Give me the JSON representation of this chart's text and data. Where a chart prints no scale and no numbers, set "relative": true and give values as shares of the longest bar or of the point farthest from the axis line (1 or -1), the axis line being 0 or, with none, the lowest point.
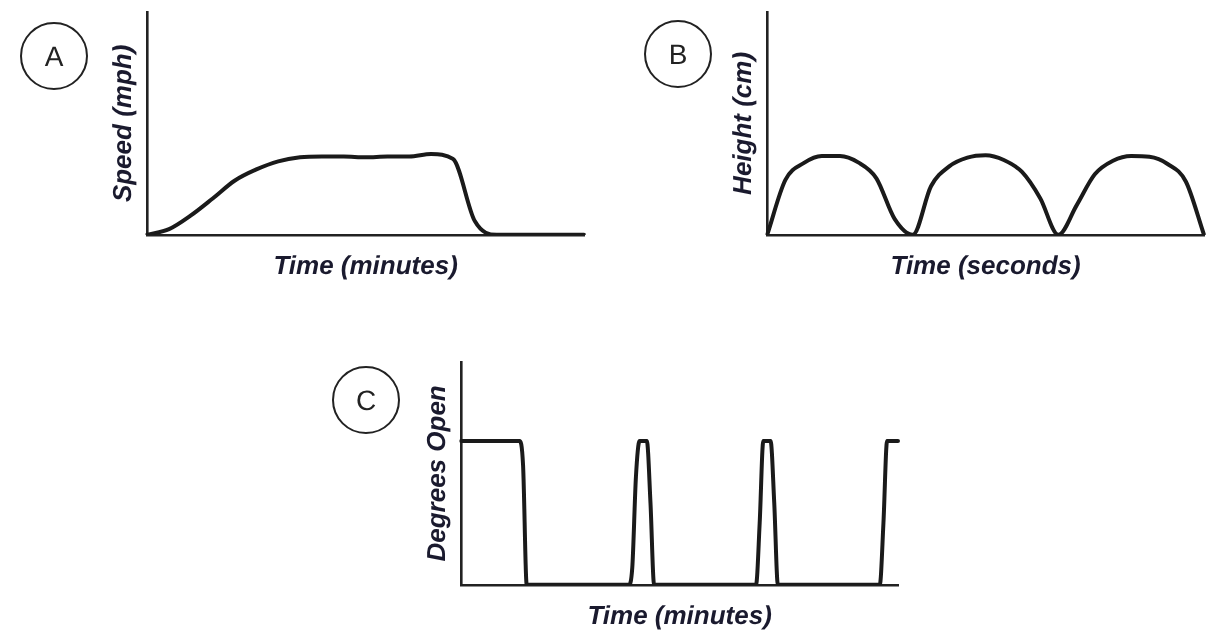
{
  "chart_data": [
    {
      "type": "line",
      "title": "A",
      "xlabel": "Time (minutes)",
      "ylabel": "Speed (mph)",
      "relative": true,
      "tick_labels": false,
      "marker": "none",
      "categories": [
        null,
        null,
        null,
        null,
        null,
        null,
        null,
        null,
        null,
        null,
        null,
        null,
        null,
        null,
        null,
        null,
        null,
        null,
        null,
        null,
        null
      ],
      "series": [
        {
          "color": "#1a1a1a",
          "values": [
            0,
            0.07,
            0.24,
            0.45,
            0.67,
            0.81,
            0.91,
            0.96,
            0.97,
            0.97,
            0.96,
            0.97,
            0.97,
            1,
            0.94,
            0.17,
            0,
            0,
            0,
            0,
            0
          ]
        }
      ]
    },
    {
      "type": "line",
      "title": "B",
      "xlabel": "Time (seconds)",
      "ylabel": "Height (cm)",
      "relative": true,
      "tick_labels": false,
      "marker": "none",
      "categories": [
        null,
        null,
        null,
        null,
        null,
        null,
        null,
        null,
        null,
        null,
        null,
        null,
        null,
        null,
        null,
        null,
        null,
        null,
        null,
        null,
        null,
        null,
        null,
        null,
        null
      ],
      "series": [
        {
          "color": "#1a1a1a",
          "values": [
            0,
            0.69,
            0.9,
            0.99,
            0.99,
            0.91,
            0.71,
            0.2,
            0,
            0.61,
            0.86,
            0.97,
            1,
            0.94,
            0.79,
            0.46,
            0,
            0.37,
            0.76,
            0.93,
            0.99,
            0.98,
            0.89,
            0.67,
            0
          ]
        }
      ]
    },
    {
      "type": "line",
      "title": "C",
      "xlabel": "Time (minutes)",
      "ylabel": "Degrees Open",
      "relative": true,
      "tick_labels": false,
      "marker": "none",
      "categories": [
        null,
        null,
        null,
        null,
        null,
        null,
        null,
        null,
        null,
        null,
        null,
        null,
        null,
        null,
        null,
        null,
        null,
        null,
        null,
        null,
        null,
        null,
        null,
        null,
        null,
        null,
        null,
        null,
        null,
        null,
        null,
        null,
        null,
        null,
        null,
        null,
        null,
        null,
        null,
        null,
        null,
        null,
        null,
        null,
        null,
        null,
        null,
        null,
        null,
        null,
        null,
        null,
        null,
        null,
        null,
        null,
        null,
        null,
        null,
        null,
        null,
        null,
        null,
        null,
        null,
        null,
        null,
        null,
        null,
        null,
        null,
        null,
        null,
        null,
        null,
        null,
        null,
        null,
        null,
        null,
        null,
        null,
        null,
        null,
        null,
        null,
        null,
        null,
        null,
        null,
        null,
        null,
        null,
        null,
        null,
        null,
        null,
        null,
        null,
        null,
        null,
        null,
        null,
        null,
        null,
        null,
        null,
        null,
        null,
        null,
        null,
        null,
        null,
        null,
        null,
        null,
        null,
        null,
        null,
        null,
        null
      ],
      "series": [
        {
          "color": "#1a1a1a",
          "values": [
            1,
            1,
            1,
            1,
            1,
            1,
            1,
            1,
            1,
            1,
            1,
            1,
            1,
            1,
            1,
            1,
            1,
            0.83,
            0,
            0,
            0,
            0,
            0,
            0,
            0,
            0,
            0,
            0,
            0,
            0,
            0,
            0,
            0,
            0,
            0,
            0,
            0,
            0,
            0,
            0,
            0,
            0,
            0,
            0,
            0,
            0,
            0,
            0.12,
            0.75,
            1,
            1,
            1,
            0.57,
            0,
            0,
            0,
            0,
            0,
            0,
            0,
            0,
            0,
            0,
            0,
            0,
            0,
            0,
            0,
            0,
            0,
            0,
            0,
            0,
            0,
            0,
            0,
            0,
            0,
            0,
            0,
            0,
            0,
            0.43,
            1,
            1,
            1,
            0.57,
            0,
            0,
            0,
            0,
            0,
            0,
            0,
            0,
            0,
            0,
            0,
            0,
            0,
            0,
            0,
            0,
            0,
            0,
            0,
            0,
            0,
            0,
            0,
            0,
            0,
            0,
            0,
            0,
            0,
            0.43,
            1,
            1,
            1,
            1
          ]
        }
      ]
    }
  ]
}
